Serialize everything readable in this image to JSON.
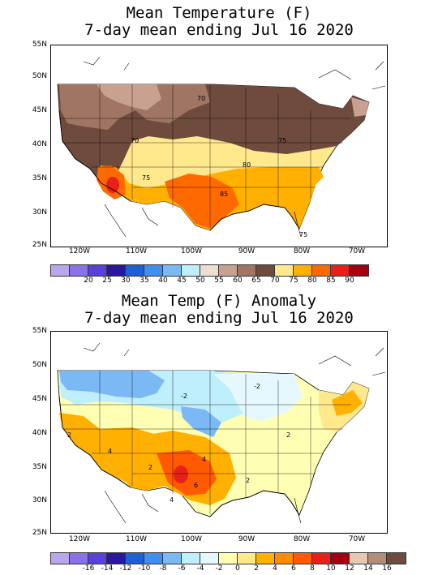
{
  "top_map": {
    "title_line1": "Mean Temperature (F)",
    "title_line2": "7-day mean ending Jul 16 2020",
    "lat_labels": [
      "55N",
      "50N",
      "45N",
      "40N",
      "35N",
      "30N",
      "25N"
    ],
    "lon_labels": [
      "120W",
      "110W",
      "100W",
      "90W",
      "80W",
      "70W"
    ],
    "contour_labels": [
      "70",
      "70",
      "75",
      "75",
      "80",
      "85",
      "75"
    ],
    "colorbar": {
      "labels": [
        "20",
        "25",
        "30",
        "35",
        "40",
        "45",
        "50",
        "55",
        "60",
        "65",
        "70",
        "75",
        "80",
        "85",
        "90"
      ],
      "colors": [
        "#b9a6ef",
        "#8a73e6",
        "#5a3fd8",
        "#2a179e",
        "#1e5fd6",
        "#3f8fee",
        "#7ab9f4",
        "#bfeefd",
        "#f0ddd2",
        "#c8a191",
        "#a07563",
        "#6f4b3e",
        "#ffe98c",
        "#ffb000",
        "#ff6a00",
        "#e8201a",
        "#a50010"
      ]
    }
  },
  "bottom_map": {
    "title_line1": "Mean Temp (F) Anomaly",
    "title_line2": "7-day mean ending Jul 16 2020",
    "lat_labels": [
      "55N",
      "50N",
      "45N",
      "40N",
      "35N",
      "30N",
      "25N"
    ],
    "lon_labels": [
      "120W",
      "110W",
      "100W",
      "90W",
      "80W",
      "70W"
    ],
    "contour_labels": [
      "-2",
      "2",
      "4",
      "2",
      "4",
      "6",
      "2",
      "4",
      "2",
      "-2"
    ],
    "colorbar": {
      "labels": [
        "-16",
        "-14",
        "-12",
        "-10",
        "-8",
        "-6",
        "-4",
        "-2",
        "0",
        "2",
        "4",
        "6",
        "8",
        "10",
        "12",
        "14",
        "16"
      ],
      "colors": [
        "#b9a6ef",
        "#8a73e6",
        "#5a3fd8",
        "#2a179e",
        "#1e5fd6",
        "#3f8fee",
        "#7ab9f4",
        "#bfeefd",
        "#e6f8ff",
        "#ffffb4",
        "#ffe98c",
        "#ffb000",
        "#ff8c00",
        "#ff5a00",
        "#e8201a",
        "#a50010",
        "#e6c8b4",
        "#b48c78",
        "#6f4b3e"
      ]
    }
  }
}
